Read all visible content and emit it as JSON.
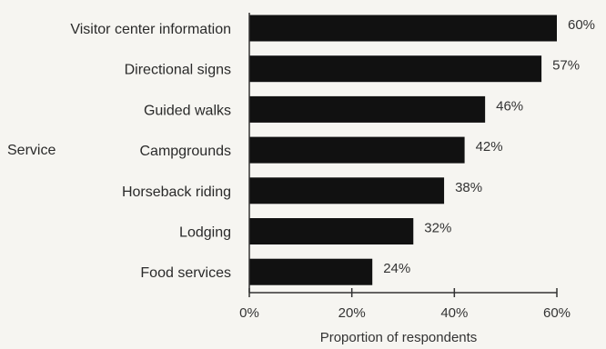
{
  "chart_data": {
    "type": "bar",
    "orientation": "horizontal",
    "categories": [
      "Visitor center information",
      "Directional signs",
      "Guided walks",
      "Campgrounds",
      "Horseback riding",
      "Lodging",
      "Food services"
    ],
    "values": [
      60,
      57,
      46,
      42,
      38,
      32,
      24
    ],
    "data_labels": [
      "60%",
      "57%",
      "46%",
      "42%",
      "38%",
      "32%",
      "24%"
    ],
    "title": "",
    "ylabel": "Service",
    "xlabel": "Proportion of respondents",
    "xlim": [
      0,
      60
    ],
    "xticks": [
      0,
      20,
      40,
      60
    ],
    "xtick_labels": [
      "0%",
      "20%",
      "40%",
      "60%"
    ],
    "grid": false,
    "legend": "none",
    "bar_color": "#111111"
  }
}
